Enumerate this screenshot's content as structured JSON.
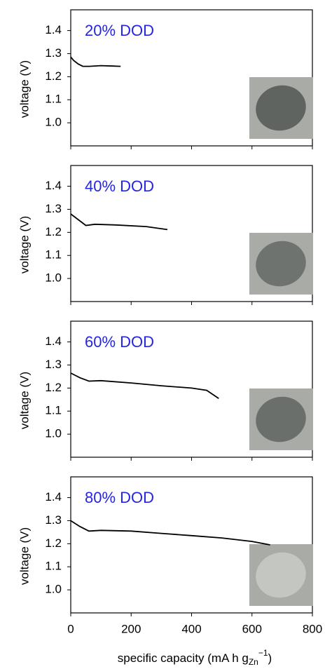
{
  "chart_data": [
    {
      "type": "line",
      "title": "20% DOD",
      "ylabel": "voltage (V)",
      "xlim": [
        0,
        800
      ],
      "ylim": [
        0.9,
        1.49
      ],
      "yticks": [
        {
          "value": 1,
          "label": "1.0"
        },
        1.1,
        1.2,
        1.3,
        1.4
      ],
      "x": [
        0,
        10,
        25,
        40,
        60,
        100,
        140,
        165
      ],
      "values": [
        1.285,
        1.27,
        1.255,
        1.245,
        1.245,
        1.248,
        1.246,
        1.245
      ],
      "color": "#000000"
    },
    {
      "type": "line",
      "title": "40% DOD",
      "ylabel": "voltage (V)",
      "xlim": [
        0,
        800
      ],
      "ylim": [
        0.9,
        1.49
      ],
      "yticks": [
        {
          "value": 1,
          "label": "1.0"
        },
        1.1,
        1.2,
        1.3,
        1.4
      ],
      "x": [
        0,
        20,
        50,
        80,
        150,
        250,
        320
      ],
      "values": [
        1.28,
        1.26,
        1.23,
        1.235,
        1.232,
        1.225,
        1.212
      ],
      "color": "#000000"
    },
    {
      "type": "line",
      "title": "60% DOD",
      "ylabel": "voltage (V)",
      "xlim": [
        0,
        800
      ],
      "ylim": [
        0.9,
        1.49
      ],
      "yticks": [
        {
          "value": 1,
          "label": "1.0"
        },
        1.1,
        1.2,
        1.3,
        1.4
      ],
      "x": [
        0,
        30,
        60,
        100,
        200,
        300,
        400,
        450,
        490
      ],
      "values": [
        1.265,
        1.245,
        1.23,
        1.232,
        1.222,
        1.21,
        1.2,
        1.19,
        1.155
      ],
      "color": "#000000"
    },
    {
      "type": "line",
      "title": "80% DOD",
      "ylabel": "voltage (V)",
      "xlim": [
        0,
        800
      ],
      "ylim": [
        0.9,
        1.49
      ],
      "yticks": [
        {
          "value": 1,
          "label": "1.0"
        },
        1.1,
        1.2,
        1.3,
        1.4
      ],
      "xticks": [
        0,
        200,
        400,
        600,
        800
      ],
      "xlabel": {
        "text": "specific capacity (mA h g",
        "sub": "Zn",
        "sup": "−1",
        "end": ")"
      },
      "x": [
        0,
        30,
        60,
        100,
        200,
        300,
        400,
        500,
        600,
        660
      ],
      "values": [
        1.3,
        1.275,
        1.255,
        1.258,
        1.255,
        1.245,
        1.235,
        1.225,
        1.21,
        1.195
      ],
      "color": "#000000"
    }
  ]
}
